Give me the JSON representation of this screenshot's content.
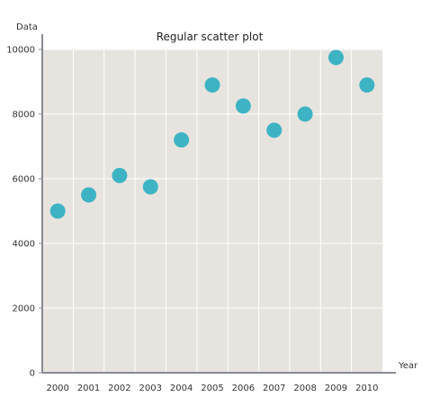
{
  "chart_data": {
    "type": "scatter",
    "title": "Regular scatter plot",
    "xlabel": "Year",
    "ylabel": "Data",
    "x": [
      "2000",
      "2001",
      "2002",
      "2003",
      "2004",
      "2005",
      "2006",
      "2007",
      "2008",
      "2009",
      "2010"
    ],
    "y": [
      5000,
      5500,
      6100,
      5750,
      7200,
      8900,
      8250,
      7500,
      8000,
      9750,
      8900
    ],
    "yticks": [
      "0",
      "2000",
      "4000",
      "6000",
      "8000",
      "10000"
    ],
    "ylim": [
      0,
      10000
    ],
    "grid": true,
    "colors": {
      "plot_background": "#e7e4df",
      "grid": "#ffffff",
      "marker": "#3db3c4",
      "axis": "#8a8a94"
    }
  }
}
